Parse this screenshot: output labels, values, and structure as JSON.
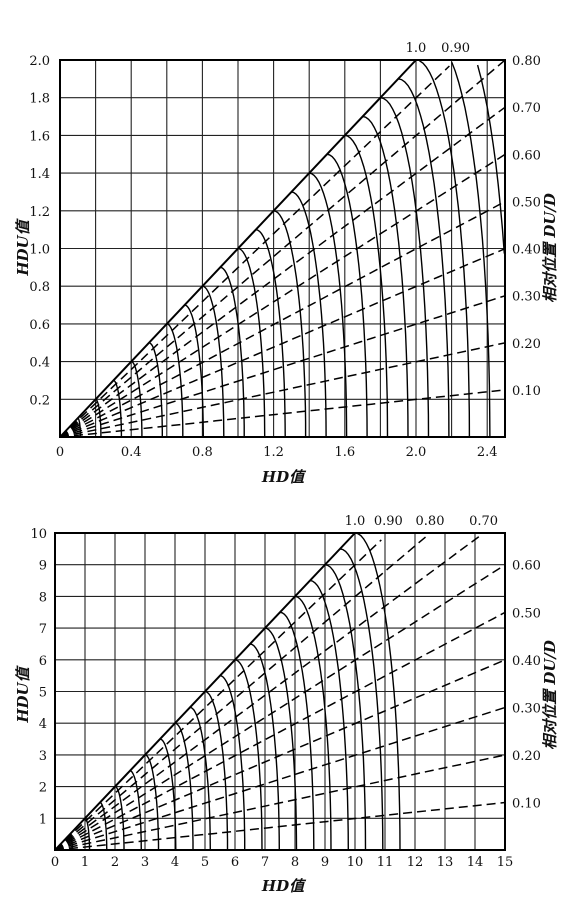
{
  "chart_data": [
    {
      "type": "line",
      "xlabel": "HD值",
      "ylabel": "HDU值",
      "y2label": "相对位置 DU/D",
      "xlim": [
        0,
        2.5
      ],
      "ylim": [
        0,
        2.0
      ],
      "x_ticks": [
        "0",
        "0.4",
        "0.8",
        "1.2",
        "1.6",
        "2.0",
        "2.4"
      ],
      "y_ticks": [
        "0.2",
        "0.4",
        "0.6",
        "0.8",
        "1.0",
        "1.2",
        "1.4",
        "1.6",
        "1.8",
        "2.0"
      ],
      "grid": true,
      "top_labels": [
        "1.0",
        "0.90"
      ],
      "right_labels": [
        "0.80",
        "0.70",
        "0.60",
        "0.50",
        "0.40",
        "0.30",
        "0.20",
        "0.10"
      ],
      "right_label_values": [
        0.8,
        0.7,
        0.6,
        0.5,
        0.4,
        0.3,
        0.2,
        0.1
      ],
      "solid_curve_step": 0.1,
      "solid_curve_max": 2.2,
      "series": [
        {
          "values": [
            1.0
          ]
        },
        {
          "values": [
            0.9
          ]
        },
        {
          "values": [
            0.8
          ]
        },
        {
          "values": [
            0.7
          ]
        },
        {
          "values": [
            0.6
          ]
        },
        {
          "values": [
            0.5
          ]
        },
        {
          "values": [
            0.4
          ]
        },
        {
          "values": [
            0.3
          ]
        },
        {
          "values": [
            0.2
          ]
        },
        {
          "values": [
            0.1
          ]
        }
      ]
    },
    {
      "type": "line",
      "xlabel": "HD值",
      "ylabel": "HDU值",
      "y2label": "相对位置 DU/D",
      "xlim": [
        0,
        15
      ],
      "ylim": [
        0,
        10
      ],
      "x_ticks": [
        "0",
        "1",
        "2",
        "3",
        "4",
        "5",
        "6",
        "7",
        "8",
        "9",
        "10",
        "11",
        "12",
        "13",
        "14",
        "15"
      ],
      "y_ticks": [
        "1",
        "2",
        "3",
        "4",
        "5",
        "6",
        "7",
        "8",
        "9",
        "10"
      ],
      "grid": true,
      "top_labels": [
        "1.0",
        "0.90",
        "0.80",
        "0.70"
      ],
      "right_labels": [
        "0.60",
        "0.50",
        "0.40",
        "0.30",
        "0.20",
        "0.10"
      ],
      "right_label_values": [
        0.6,
        0.5,
        0.4,
        0.3,
        0.2,
        0.1
      ],
      "solid_curve_step": 0.5,
      "solid_curve_max": 10,
      "series": [
        {
          "values": [
            1.0
          ]
        },
        {
          "values": [
            0.9
          ]
        },
        {
          "values": [
            0.8
          ]
        },
        {
          "values": [
            0.7
          ]
        },
        {
          "values": [
            0.6
          ]
        },
        {
          "values": [
            0.5
          ]
        },
        {
          "values": [
            0.4
          ]
        },
        {
          "values": [
            0.3
          ]
        },
        {
          "values": [
            0.2
          ]
        },
        {
          "values": [
            0.1
          ]
        }
      ]
    }
  ]
}
